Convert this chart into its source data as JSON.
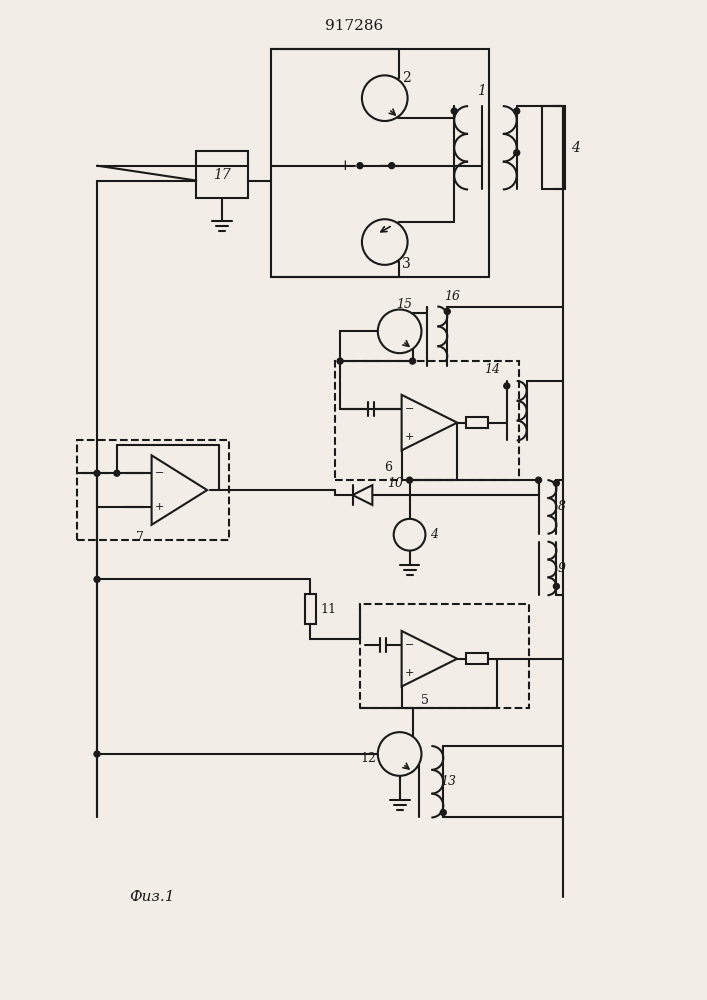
{
  "title": "917286",
  "fig_label": "Физ.1",
  "bg_color": "#f2ede6",
  "line_color": "#1a1a1a",
  "lw": 1.5
}
